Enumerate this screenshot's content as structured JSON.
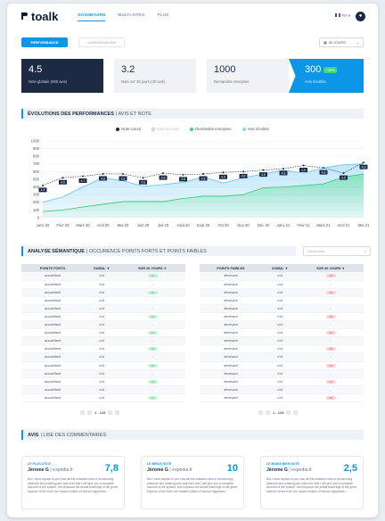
{
  "brand": "toalk",
  "nav": [
    "DASHBOARD",
    "MULTI-SITES",
    "PLUS"
  ],
  "lang": "FR",
  "buttons": {
    "performance": "PERFORMANCE",
    "comparaisons": "COMPARAISONS",
    "period": "30 JOURS"
  },
  "kpis": [
    {
      "value": "4.5",
      "label": "Note globale (596 avis)"
    },
    {
      "value": "3.2",
      "label": "Note sur 30 jours (40 avis)"
    },
    {
      "value": "1000",
      "label": "Demandes envoyées"
    },
    {
      "value": "300",
      "badge": "+33%",
      "label": "Avis récoltés"
    }
  ],
  "perf": {
    "title": "ÉVOLUTIONS DES PERFORMANCES",
    "sub": "| AVIS ET NOTE"
  },
  "legend": [
    "Note cumul",
    "Note du mois",
    "Demandes envoyées",
    "Avis récoltés"
  ],
  "colors": {
    "accent": "#0d95e8",
    "dark": "#1d2a44",
    "green": "#3bd77a",
    "lightblue": "#8fd4f5"
  },
  "chart_data": {
    "type": "line",
    "x": [
      "Janv 20",
      "Févr 20",
      "Mars 20",
      "Avril 20",
      "Mai 20",
      "Juin 20",
      "Juil 20",
      "Août 20",
      "Sept 20",
      "Oct 20",
      "Nov 20",
      "Déc 20",
      "Janv 21",
      "Févr 21",
      "Mars 21",
      "Avril 21",
      "Mai 21"
    ],
    "yticks": [
      0,
      100,
      200,
      300,
      400,
      500,
      600,
      700,
      800,
      900,
      1000
    ],
    "ylim": [
      0,
      1000
    ],
    "series": [
      {
        "name": "Note cumul",
        "values": [
          420,
          520,
          540,
          570,
          570,
          520,
          580,
          560,
          570,
          590,
          600,
          620,
          640,
          680,
          650,
          580,
          720
        ],
        "labels": [
          "4.5",
          "4.6",
          "4.7",
          "4.8",
          "4.8",
          "4.6",
          "4.8",
          "4.8",
          "4.8",
          "4.9",
          "4.8",
          "4.8",
          "4.8",
          "4.9",
          "4.8",
          "4.5",
          "4.9"
        ]
      },
      {
        "name": "Demandes envoyées",
        "values": [
          80,
          100,
          140,
          175,
          210,
          210,
          210,
          250,
          280,
          280,
          300,
          390,
          400,
          420,
          440,
          530,
          570
        ]
      },
      {
        "name": "Avis récoltés",
        "values": [
          200,
          270,
          400,
          520,
          480,
          410,
          430,
          460,
          530,
          450,
          520,
          570,
          620,
          580,
          650,
          690,
          700
        ]
      }
    ]
  },
  "sem": {
    "title": "ANALYSE SÉMANTIQUE",
    "sub": "| OCCURENCE POINTS FORTS ET POINTS FAIBLES",
    "search": "Recherche"
  },
  "forts": {
    "headers": [
      "POINTS FORTS",
      "CUMUL",
      "SUR 30 JOURS"
    ],
    "term": "accueillant",
    "count": "x14",
    "trend": [
      "up",
      "-",
      "up",
      "-",
      "-",
      "up",
      "-",
      "up",
      "-",
      "up",
      "-",
      "up",
      "-",
      "up",
      "-",
      "up"
    ]
  },
  "faibles": {
    "headers": [
      "POINTS FAIBLES",
      "CUMUL",
      "SUR 30 JOURS"
    ],
    "term": "décevant",
    "count": "x14",
    "trend": [
      "dn",
      "-",
      "dn",
      "-",
      "-",
      "dn",
      "-",
      "dn",
      "-",
      "dn",
      "-",
      "dn",
      "-",
      "dn",
      "-",
      "dn"
    ]
  },
  "pagination": "1 - 125",
  "avis": {
    "title": "AVIS",
    "sub": "| LISE DES COMMENTAIRES"
  },
  "reviews": [
    {
      "tag": "LE PLUS UTILE",
      "name": "Jérome G",
      "src": "| expedia.fr",
      "score": "7,8",
      "text": "But I must explain to you how all this mistaken idea of denouncing pleasure and praising pain was born and I will give you a complete account of the system, and expound the actual teachings of the great explorer of the truth, the master-builder of human happiness..."
    },
    {
      "tag": "LE MIEUX NOTÉ",
      "name": "Jérome G",
      "src": "| expedia.fr",
      "score": "10",
      "text": "But I must explain to you how all this mistaken idea of denouncing pleasure and praising pain was born and I will give you a complete account of the system, and expound the actual teachings of the great explorer of the truth, the master-builder of human happiness..."
    },
    {
      "tag": "LE MOINS BIEN NOTÉ",
      "name": "Jérome G",
      "src": "| expedia.fr",
      "score": "2,5",
      "text": "But I must explain to you how all this mistaken idea of denouncing pleasure and praising pain was born and I will give you a complete account of the system, and expound the actual teachings of the great explorer of the truth, the master-builder of human happiness..."
    }
  ]
}
